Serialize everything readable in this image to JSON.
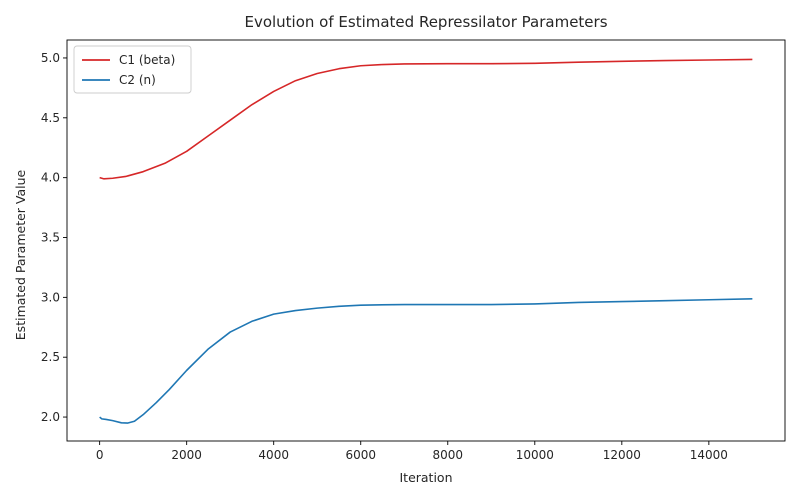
{
  "chart_data": {
    "type": "line",
    "title": "Evolution of Estimated Repressilator Parameters",
    "xlabel": "Iteration",
    "ylabel": "Estimated Parameter Value",
    "xlim": [
      -750,
      15750
    ],
    "ylim": [
      1.8,
      5.15
    ],
    "xticks": [
      0,
      2000,
      4000,
      6000,
      8000,
      10000,
      12000,
      14000
    ],
    "yticks": [
      2.0,
      2.5,
      3.0,
      3.5,
      4.0,
      4.5,
      5.0
    ],
    "ytick_labels": [
      "2.0",
      "2.5",
      "3.0",
      "3.5",
      "4.0",
      "4.5",
      "5.0"
    ],
    "grid": false,
    "legend_position": "top-left",
    "series": [
      {
        "name": "C1 (beta)",
        "color": "#d62728",
        "x": [
          0,
          100,
          300,
          600,
          1000,
          1500,
          2000,
          2500,
          3000,
          3500,
          4000,
          4500,
          5000,
          5500,
          6000,
          6500,
          7000,
          8000,
          9000,
          10000,
          11000,
          12000,
          13000,
          14000,
          15000
        ],
        "y": [
          4.0,
          3.99,
          3.995,
          4.01,
          4.05,
          4.12,
          4.22,
          4.35,
          4.48,
          4.61,
          4.72,
          4.81,
          4.87,
          4.91,
          4.935,
          4.945,
          4.95,
          4.952,
          4.952,
          4.955,
          4.965,
          4.972,
          4.978,
          4.983,
          4.988
        ]
      },
      {
        "name": "C2 (n)",
        "color": "#1f77b4",
        "x": [
          0,
          50,
          150,
          300,
          500,
          650,
          800,
          1000,
          1300,
          1600,
          2000,
          2500,
          3000,
          3500,
          4000,
          4500,
          5000,
          5500,
          6000,
          7000,
          8000,
          9000,
          10000,
          11000,
          12000,
          13000,
          14000,
          15000
        ],
        "y": [
          2.0,
          1.985,
          1.98,
          1.97,
          1.952,
          1.95,
          1.965,
          2.02,
          2.12,
          2.23,
          2.39,
          2.57,
          2.71,
          2.8,
          2.86,
          2.89,
          2.91,
          2.925,
          2.935,
          2.94,
          2.94,
          2.94,
          2.945,
          2.958,
          2.965,
          2.972,
          2.98,
          2.988
        ]
      }
    ]
  }
}
